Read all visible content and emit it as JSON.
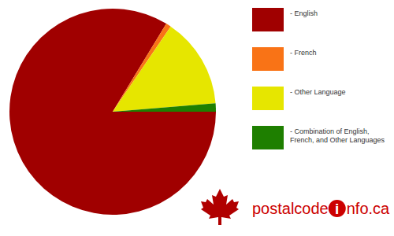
{
  "chart_data": {
    "type": "pie",
    "categories": [
      "- English",
      "- French",
      "- Other Language",
      "- Combination of English, French, and Other Languages"
    ],
    "values": [
      83.7,
      0.8,
      14.2,
      1.3
    ],
    "colors": [
      "#a00000",
      "#f97316",
      "#e6e600",
      "#1e7f00"
    ],
    "legend": "right",
    "annotations": [
      "postalcode",
      "i",
      "nfo.ca"
    ]
  }
}
